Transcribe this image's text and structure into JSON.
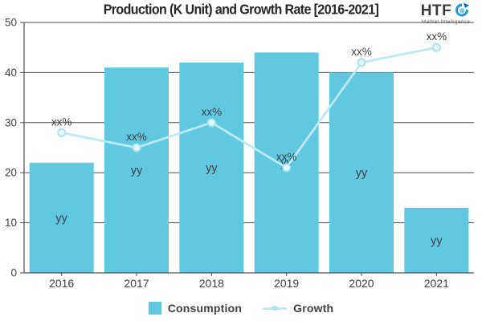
{
  "title": "Production (K Unit) and Growth Rate [2016-2021]",
  "logo": {
    "brand": "HTF",
    "tagline": "Market Intelligence"
  },
  "legend": [
    {
      "label": "Consumption",
      "marker": "square"
    },
    {
      "label": "Growth",
      "marker": "line-dot"
    }
  ],
  "colors": {
    "bar": "#61C8E2",
    "line": "#BCEAF3",
    "marker_fill": "#E6F7FB",
    "marker_stroke": "#ABE4EF",
    "grid": "#4D4D4D",
    "axis": "#4D4D4D",
    "text": "#3F3F3F",
    "title_text": "#262626",
    "logo_blue": "#1699D6"
  },
  "chart_data": {
    "type": "bar",
    "title": "Production (K Unit) and Growth Rate [2016-2021]",
    "categories": [
      "2016",
      "2017",
      "2018",
      "2019",
      "2020",
      "2021"
    ],
    "series": [
      {
        "name": "Consumption",
        "type": "bar",
        "values": [
          22,
          41,
          42,
          44,
          40,
          13
        ],
        "data_labels": [
          "yy",
          "yy",
          "yy",
          "yy",
          "yy",
          "yy"
        ]
      },
      {
        "name": "Growth",
        "type": "line",
        "values": [
          28,
          25,
          30,
          21,
          42,
          45
        ],
        "data_labels": [
          "xx%",
          "xx%",
          "xx%",
          "xx%",
          "xx%",
          "xx%"
        ]
      }
    ],
    "xlabel": "",
    "ylabel": "",
    "ylim": [
      0,
      50
    ],
    "yticks": [
      0,
      10,
      20,
      30,
      40,
      50
    ],
    "grid": true,
    "legend_position": "bottom"
  }
}
